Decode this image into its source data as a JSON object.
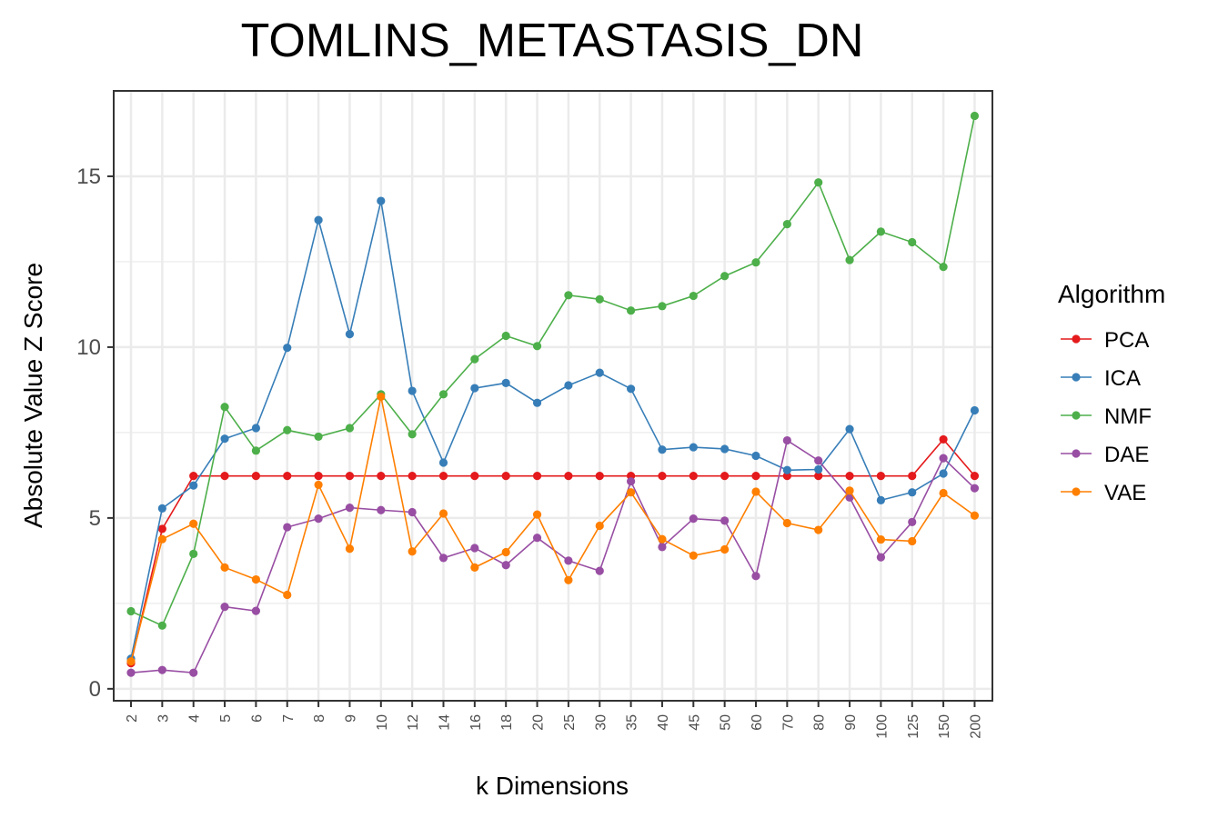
{
  "chart_data": {
    "type": "line",
    "title": "TOMLINS_METASTASIS_DN",
    "xlabel": "k Dimensions",
    "ylabel": "Absolute Value Z Score",
    "categories": [
      "2",
      "3",
      "4",
      "5",
      "6",
      "7",
      "8",
      "9",
      "10",
      "12",
      "14",
      "16",
      "18",
      "20",
      "25",
      "30",
      "35",
      "40",
      "45",
      "50",
      "60",
      "70",
      "80",
      "90",
      "100",
      "125",
      "150",
      "200"
    ],
    "ylim": [
      -0.35,
      17.5
    ],
    "yticks": [
      0,
      5,
      10,
      15
    ],
    "grid": true,
    "legend": {
      "title": "Algorithm",
      "position": "right"
    },
    "series": [
      {
        "name": "PCA",
        "color": "#e41a1c",
        "values": [
          0.75,
          4.68,
          6.23,
          6.23,
          6.23,
          6.23,
          6.23,
          6.23,
          6.23,
          6.23,
          6.23,
          6.23,
          6.23,
          6.23,
          6.23,
          6.23,
          6.23,
          6.23,
          6.23,
          6.23,
          6.23,
          6.23,
          6.23,
          6.23,
          6.23,
          6.23,
          7.3,
          6.23
        ]
      },
      {
        "name": "ICA",
        "color": "#377eb8",
        "values": [
          0.88,
          5.28,
          5.95,
          7.32,
          7.63,
          9.98,
          13.72,
          10.38,
          14.28,
          8.72,
          6.62,
          8.8,
          8.95,
          8.37,
          8.88,
          9.25,
          8.78,
          7.0,
          7.07,
          7.02,
          6.82,
          6.4,
          6.42,
          7.6,
          5.52,
          5.75,
          6.3,
          8.15
        ]
      },
      {
        "name": "NMF",
        "color": "#4daf4a",
        "values": [
          2.27,
          1.85,
          3.95,
          8.25,
          6.97,
          7.57,
          7.38,
          7.63,
          8.62,
          7.45,
          8.62,
          9.65,
          10.33,
          10.03,
          11.52,
          11.4,
          11.07,
          11.2,
          11.5,
          12.08,
          12.48,
          13.6,
          14.82,
          12.55,
          13.38,
          13.07,
          12.35,
          16.77
        ]
      },
      {
        "name": "DAE",
        "color": "#984ea3",
        "values": [
          0.47,
          0.55,
          0.47,
          2.4,
          2.28,
          4.73,
          4.98,
          5.3,
          5.23,
          5.17,
          3.83,
          4.12,
          3.62,
          4.42,
          3.75,
          3.45,
          6.07,
          4.15,
          4.98,
          4.92,
          3.3,
          7.27,
          6.68,
          5.6,
          3.85,
          4.88,
          6.75,
          5.87
        ]
      },
      {
        "name": "VAE",
        "color": "#ff7f00",
        "values": [
          0.8,
          4.38,
          4.83,
          3.55,
          3.2,
          2.75,
          5.97,
          4.1,
          8.55,
          4.02,
          5.13,
          3.55,
          4.0,
          5.1,
          3.18,
          4.77,
          5.75,
          4.38,
          3.9,
          4.08,
          5.77,
          4.85,
          4.65,
          5.8,
          4.37,
          4.32,
          5.73,
          5.07
        ]
      }
    ]
  }
}
